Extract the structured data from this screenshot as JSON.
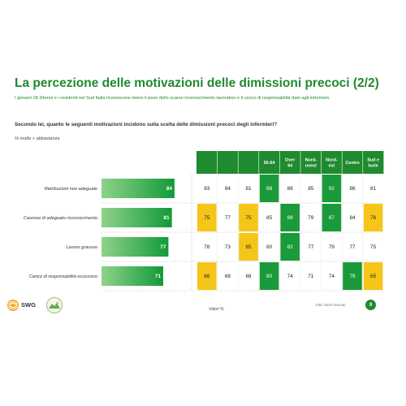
{
  "header": {
    "title": "La percezione delle motivazioni delle dimissioni precoci (2/2)",
    "subtitle": "I giovani 18-34enni e i residenti nel Sud Italia riconoscono meno il peso dello scarso riconoscimento lavorativo e il carico di responsabilità dato agli infermieri.",
    "question": "Secondo lei, quanto le seguenti motivazioni incidono sulla scelta delle dimissioni precoci degli infermieri?",
    "note": "% molto + abbastanza"
  },
  "footer": {
    "source": "Valori %.",
    "rights": "Tutti i diritti riservati",
    "page_number": "9",
    "logo_text": "SWG"
  },
  "colors": {
    "brand_green": "#1f8a2e",
    "bar_green": "#1a9a3a",
    "highlight_yellow": "#f5c518",
    "highlight_green": "#1a9a3a"
  },
  "chart_data": {
    "type": "table",
    "rows": [
      "Retribuzioni non adeguate",
      "Carenza di adeguato riconoscimento",
      "Lavoro gravoso",
      "Carico di responsabilità eccessivo"
    ],
    "total": [
      84,
      81,
      77,
      71
    ],
    "columns": [
      "",
      "",
      "",
      "55-64",
      "Over 64",
      "Nord-ovest",
      "Nord-est",
      "Centro",
      "Sud e Isole"
    ],
    "column_labels": [
      [],
      [],
      [],
      [
        "55-64"
      ],
      [
        "Over",
        "64"
      ],
      [
        "Nord-",
        "ovest"
      ],
      [
        "Nord-",
        "est"
      ],
      [
        "Centro"
      ],
      [
        "Sud e",
        "Isole"
      ]
    ],
    "values": [
      [
        83,
        84,
        81,
        88,
        86,
        85,
        92,
        86,
        81
      ],
      [
        75,
        77,
        75,
        85,
        88,
        79,
        87,
        84,
        76
      ],
      [
        78,
        73,
        65,
        80,
        82,
        77,
        79,
        77,
        75
      ],
      [
        66,
        68,
        68,
        80,
        74,
        71,
        74,
        79,
        65
      ]
    ],
    "highlights": [
      [
        "",
        "",
        "",
        "green",
        "",
        "",
        "green",
        "",
        ""
      ],
      [
        "yellow",
        "",
        "yellow",
        "",
        "green",
        "",
        "green",
        "",
        "yellow"
      ],
      [
        "",
        "",
        "yellow",
        "",
        "green",
        "",
        "",
        "",
        ""
      ],
      [
        "yellow",
        "",
        "",
        "green",
        "",
        "",
        "",
        "green",
        "yellow"
      ]
    ],
    "xlim": [
      0,
      100
    ]
  }
}
